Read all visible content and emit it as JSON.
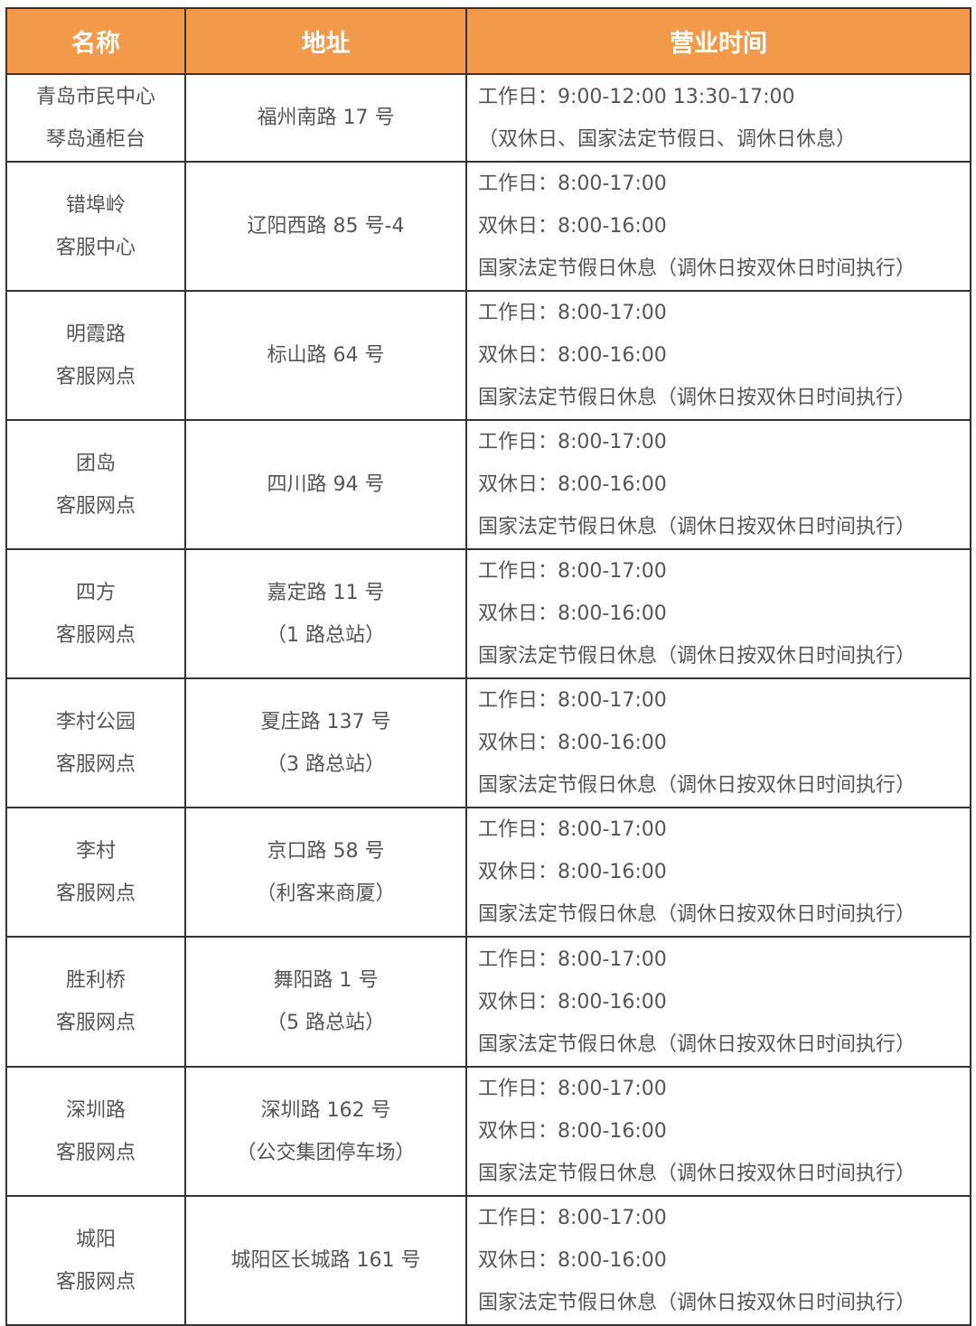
{
  "header": {
    "name": "名称",
    "address": "地址",
    "hours": "营业时间"
  },
  "colors": {
    "header_bg": "#F3994A",
    "header_text": "#FFFFFF",
    "body_text": "#555555",
    "border": "#333333"
  },
  "rows": [
    {
      "name": [
        "青岛市民中心",
        "琴岛通柜台"
      ],
      "address": [
        "福州南路 17 号"
      ],
      "hours": [
        "工作日：9:00-12:00   13:30-17:00",
        "（双休日、国家法定节假日、调休日休息）"
      ]
    },
    {
      "name": [
        "错埠岭",
        "客服中心"
      ],
      "address": [
        "辽阳西路 85 号-4"
      ],
      "hours": [
        "工作日：8:00-17:00",
        "双休日：8:00-16:00",
        "国家法定节假日休息（调休日按双休日时间执行）"
      ]
    },
    {
      "name": [
        "明霞路",
        "客服网点"
      ],
      "address": [
        "标山路 64 号"
      ],
      "hours": [
        "工作日：8:00-17:00",
        "双休日：8:00-16:00",
        "国家法定节假日休息（调休日按双休日时间执行）"
      ]
    },
    {
      "name": [
        "团岛",
        "客服网点"
      ],
      "address": [
        "四川路 94 号"
      ],
      "hours": [
        "工作日：8:00-17:00",
        "双休日：8:00-16:00",
        "国家法定节假日休息（调休日按双休日时间执行）"
      ]
    },
    {
      "name": [
        "四方",
        "客服网点"
      ],
      "address": [
        "嘉定路 11 号",
        "（1 路总站）"
      ],
      "hours": [
        "工作日：8:00-17:00",
        "双休日：8:00-16:00",
        "国家法定节假日休息（调休日按双休日时间执行）"
      ]
    },
    {
      "name": [
        "李村公园",
        "客服网点"
      ],
      "address": [
        "夏庄路 137 号",
        "（3 路总站）"
      ],
      "hours": [
        "工作日：8:00-17:00",
        "双休日：8:00-16:00",
        "国家法定节假日休息（调休日按双休日时间执行）"
      ]
    },
    {
      "name": [
        "李村",
        "客服网点"
      ],
      "address": [
        "京口路 58 号",
        "（利客来商厦）"
      ],
      "hours": [
        "工作日：8:00-17:00",
        "双休日：8:00-16:00",
        "国家法定节假日休息（调休日按双休日时间执行）"
      ]
    },
    {
      "name": [
        "胜利桥",
        "客服网点"
      ],
      "address": [
        "舞阳路 1 号",
        "（5 路总站）"
      ],
      "hours": [
        "工作日：8:00-17:00",
        "双休日：8:00-16:00",
        "国家法定节假日休息（调休日按双休日时间执行）"
      ]
    },
    {
      "name": [
        "深圳路",
        "客服网点"
      ],
      "address": [
        "深圳路 162 号",
        "（公交集团停车场）"
      ],
      "hours": [
        "工作日：8:00-17:00",
        "双休日：8:00-16:00",
        "国家法定节假日休息（调休日按双休日时间执行）"
      ]
    },
    {
      "name": [
        "城阳",
        "客服网点"
      ],
      "address": [
        "城阳区长城路 161 号"
      ],
      "hours": [
        "工作日：8:00-17:00",
        "双休日：8:00-16:00",
        "国家法定节假日休息（调休日按双休日时间执行）"
      ]
    }
  ]
}
